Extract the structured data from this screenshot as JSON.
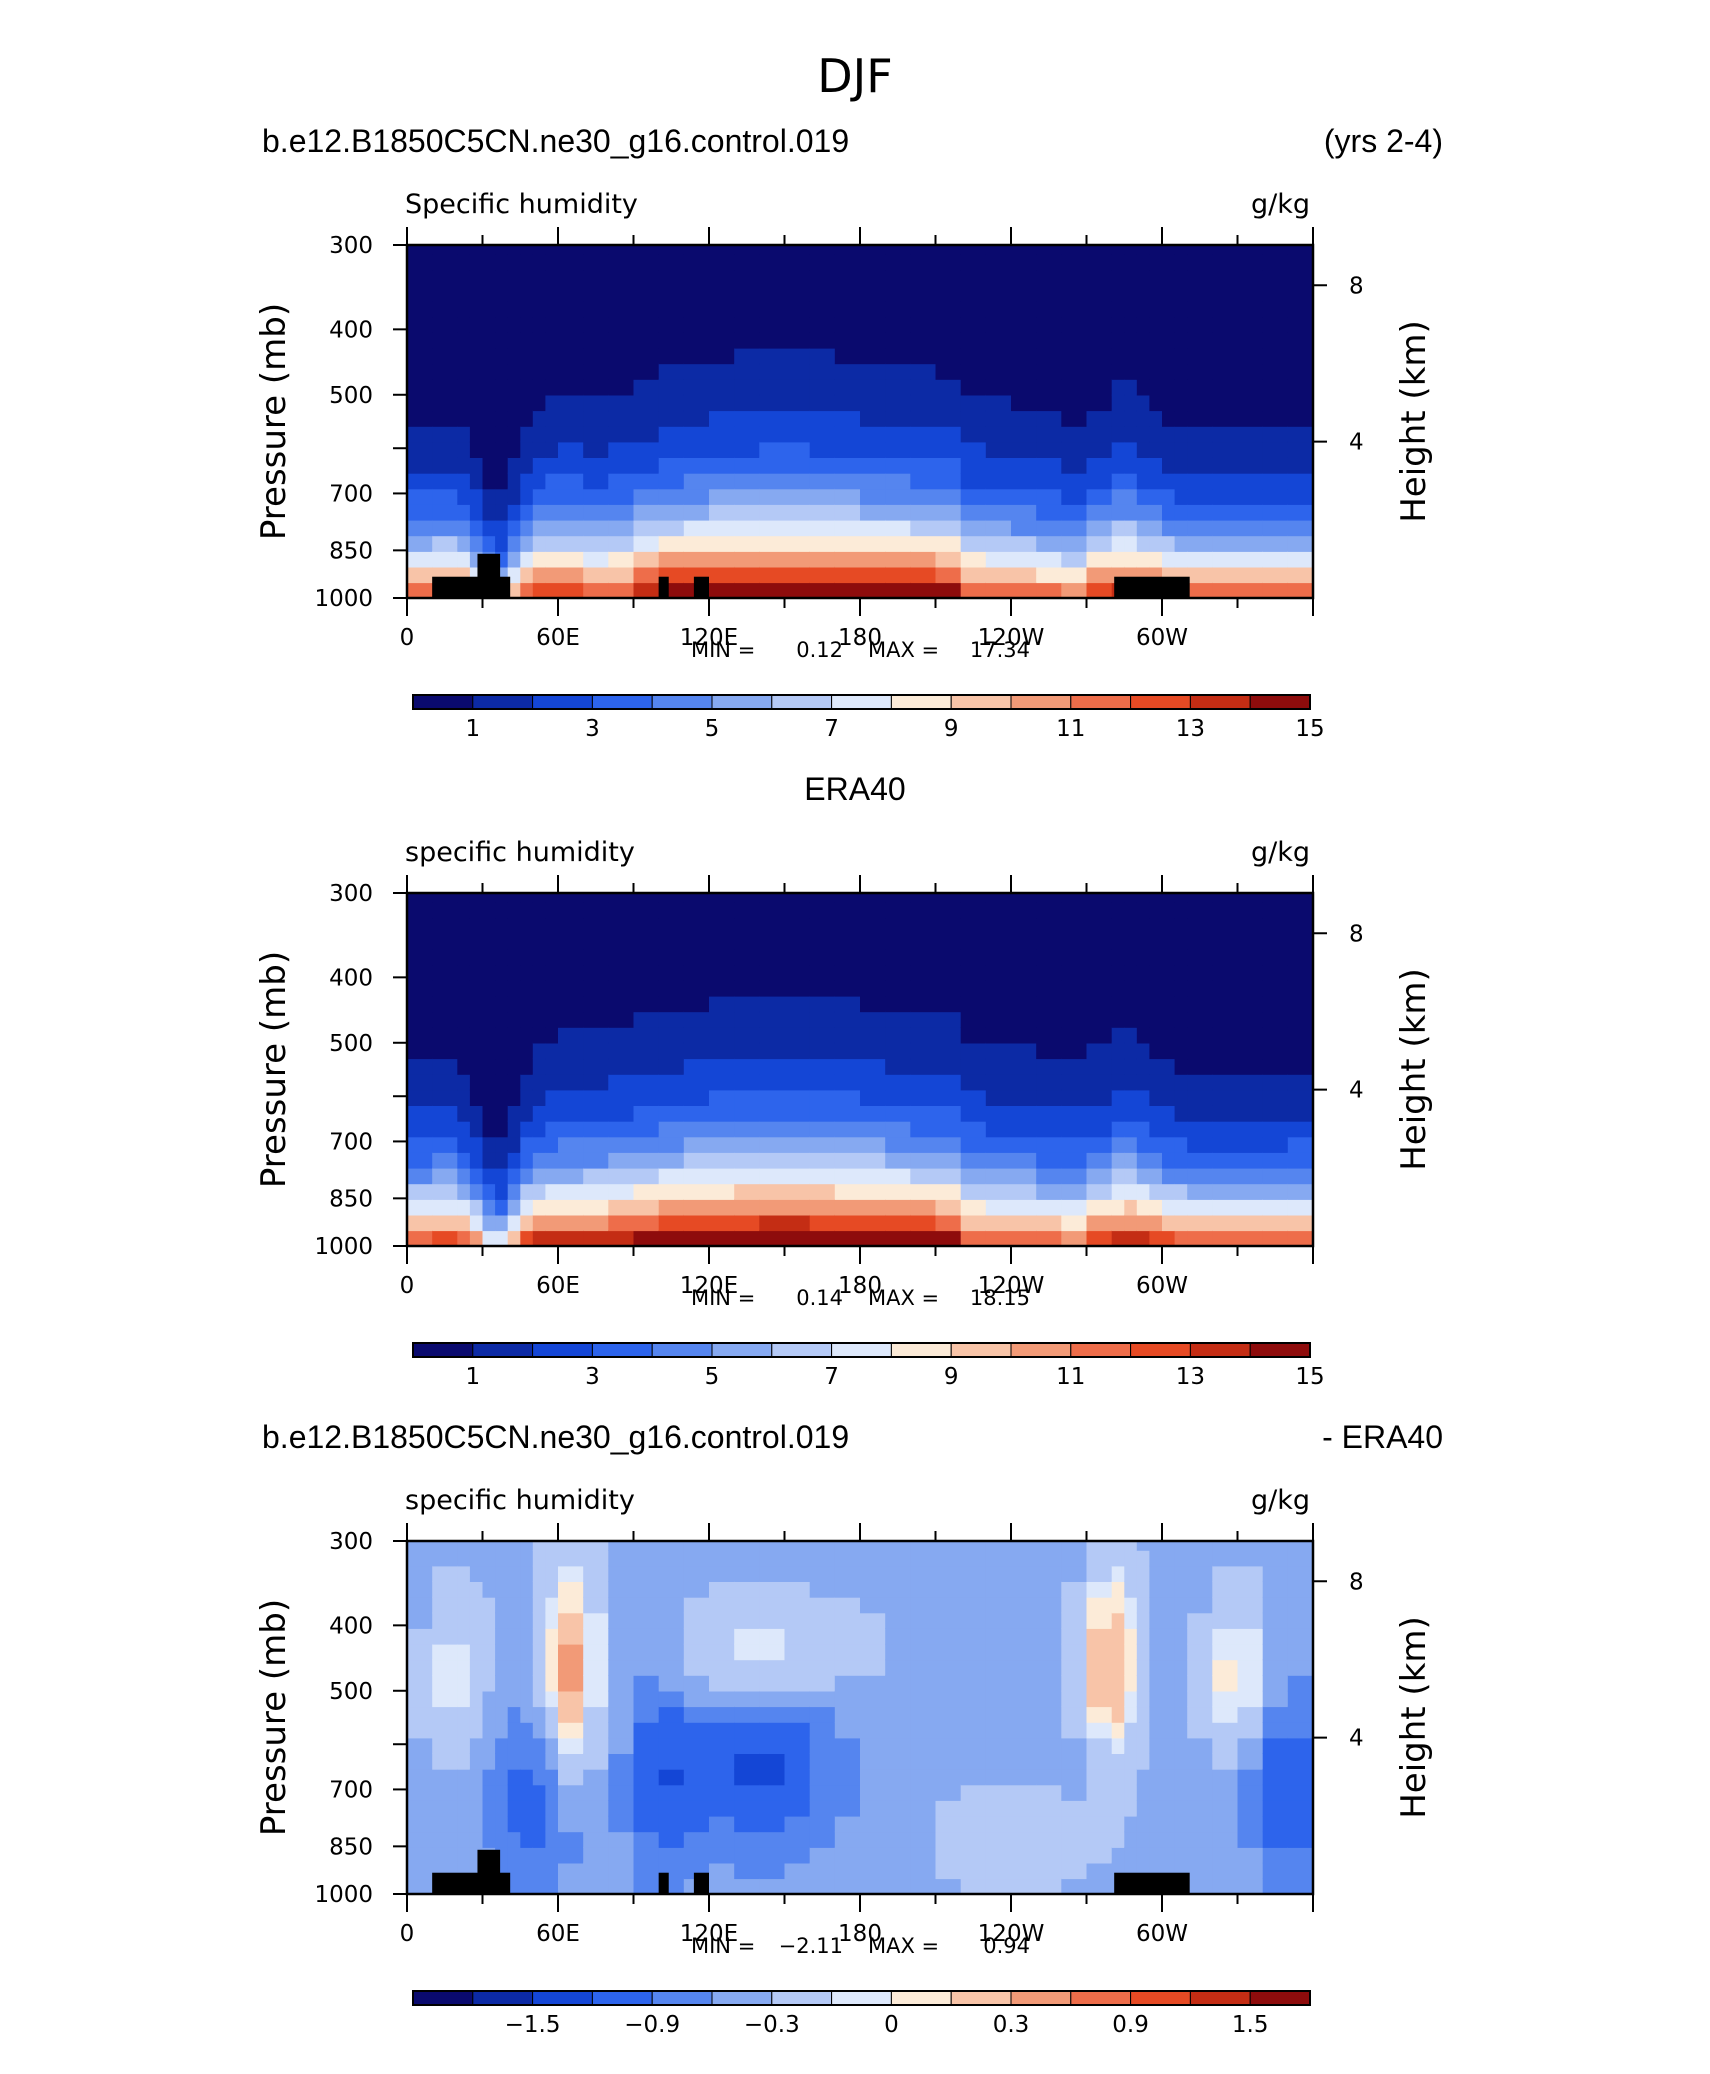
{
  "figure": {
    "title": "DJF"
  },
  "colors": {
    "scale": [
      "#0a0a6e",
      "#0c2aa5",
      "#1446d6",
      "#2d64ec",
      "#5585ef",
      "#86a9f1",
      "#b4c9f6",
      "#dde8fb",
      "#fcebd8",
      "#f8c4a8",
      "#f29a77",
      "#ee6d4a",
      "#e64a24",
      "#c42d14",
      "#8e0c0c"
    ],
    "terrain": "#000000"
  },
  "chart_data": [
    {
      "type": "heatmap",
      "header_left": "b.e12.B1850C5CN.ne30_g16.control.019",
      "header_right": "(yrs 2-4)",
      "left_string": "Specific humidity",
      "right_string": "g/kg",
      "ylabel": "Pressure (mb)",
      "ylabel_right": "Height (km)",
      "x_ticks": [
        "0",
        "60E",
        "120E",
        "180",
        "120W",
        "60W"
      ],
      "y_ticks": [
        "300",
        "400",
        "500",
        "",
        "700",
        "850",
        "1000"
      ],
      "y_ticks_right": [
        "8",
        "4"
      ],
      "min_label": "MIN =",
      "min_value": "0.12",
      "max_label": "MAX =",
      "max_value": "17.34",
      "colorbar_labels": [
        "1",
        "3",
        "5",
        "7",
        "9",
        "11",
        "13",
        "15"
      ],
      "min": 0.12,
      "max": 17.34
    },
    {
      "type": "heatmap",
      "header_center": "ERA40",
      "left_string": "specific humidity",
      "right_string": "g/kg",
      "ylabel": "Pressure (mb)",
      "ylabel_right": "Height (km)",
      "x_ticks": [
        "0",
        "60E",
        "120E",
        "180",
        "120W",
        "60W"
      ],
      "y_ticks": [
        "300",
        "400",
        "500",
        "",
        "700",
        "850",
        "1000"
      ],
      "y_ticks_right": [
        "8",
        "4"
      ],
      "min_label": "MIN =",
      "min_value": "0.14",
      "max_label": "MAX =",
      "max_value": "18.15",
      "colorbar_labels": [
        "1",
        "3",
        "5",
        "7",
        "9",
        "11",
        "13",
        "15"
      ],
      "min": 0.14,
      "max": 18.15
    },
    {
      "type": "heatmap",
      "header_left": "b.e12.B1850C5CN.ne30_g16.control.019",
      "header_right": "- ERA40",
      "left_string": "specific humidity",
      "right_string": "g/kg",
      "ylabel": "Pressure (mb)",
      "ylabel_right": "Height (km)",
      "x_ticks": [
        "0",
        "60E",
        "120E",
        "180",
        "120W",
        "60W"
      ],
      "y_ticks": [
        "300",
        "400",
        "500",
        "",
        "700",
        "850",
        "1000"
      ],
      "y_ticks_right": [
        "8",
        "4"
      ],
      "min_label": "MIN =",
      "min_value": "−2.11",
      "max_label": "MAX =",
      "max_value": "0.94",
      "colorbar_labels": [
        "−1.5",
        "−0.9",
        "−0.3",
        "0",
        "0.3",
        "0.9",
        "1.5"
      ],
      "min": -2.11,
      "max": 0.94
    }
  ]
}
